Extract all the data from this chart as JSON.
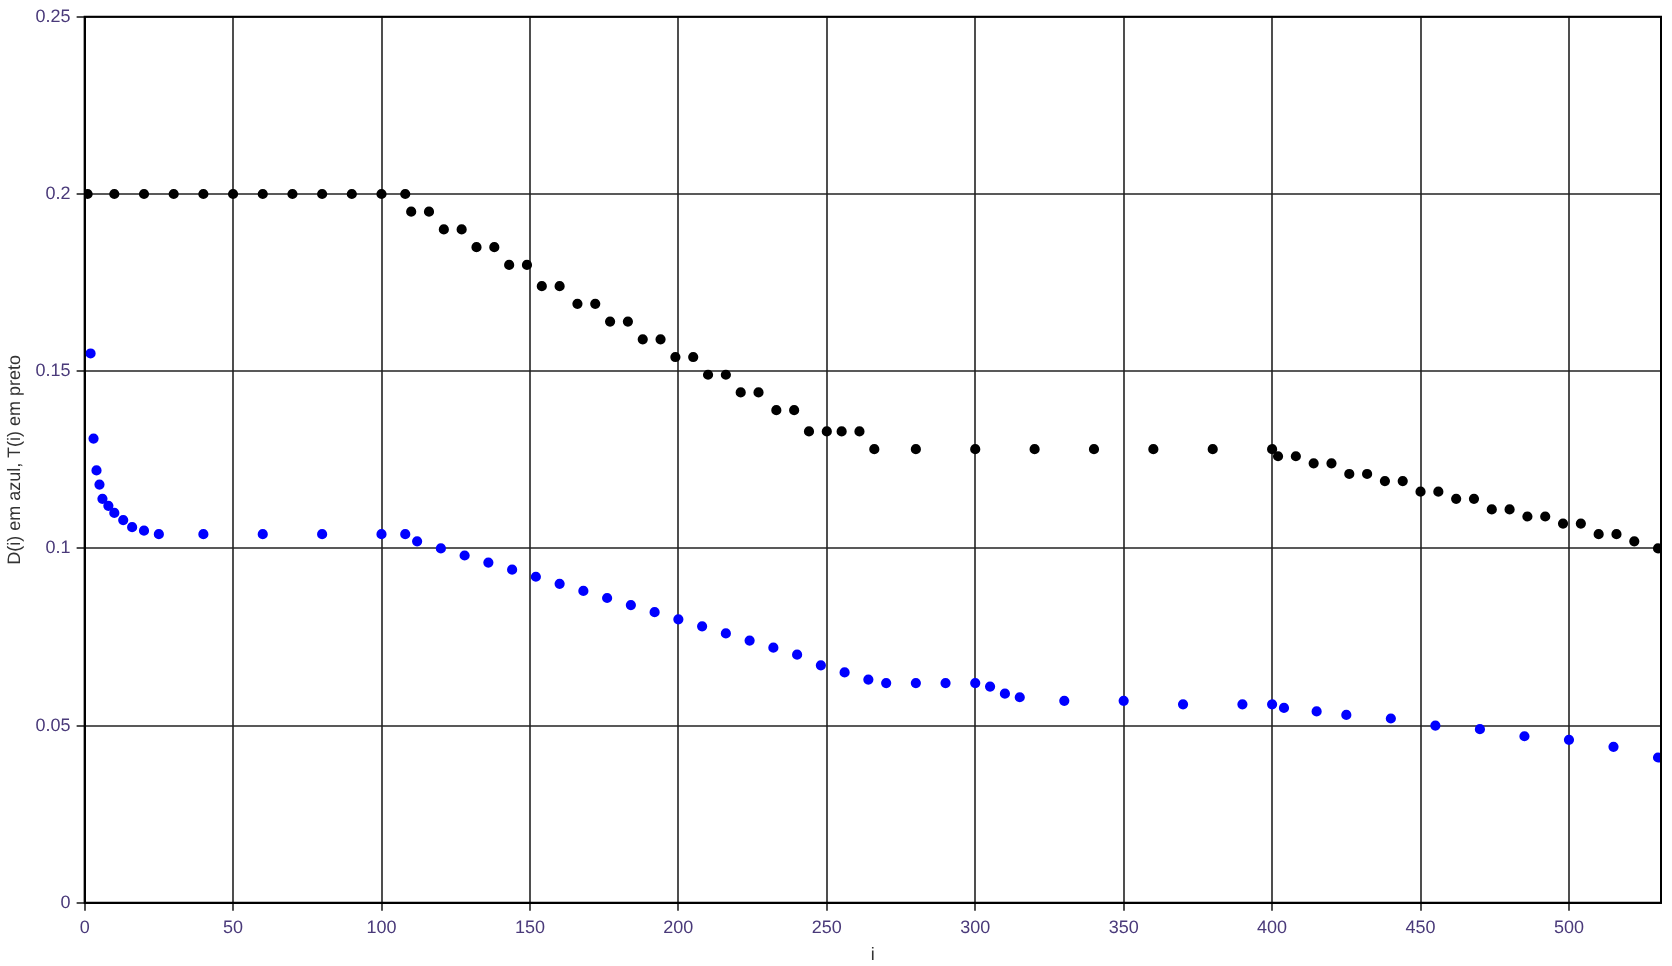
{
  "chart_data": {
    "type": "scatter",
    "xlabel": "i",
    "ylabel": "D(i) em azul, T(i) em preto",
    "xlim": [
      0,
      531
    ],
    "xticks": [
      0,
      50,
      100,
      150,
      200,
      250,
      300,
      350,
      400,
      450,
      500
    ],
    "ylim": [
      0,
      0.25
    ],
    "yticks": [
      0,
      0.05,
      0.1,
      0.15,
      0.2,
      0.25
    ],
    "grid": true,
    "legend": false,
    "marker": "circle",
    "series": [
      {
        "color": "#000000",
        "x": [
          1,
          10,
          20,
          30,
          40,
          50,
          60,
          70,
          80,
          90,
          100,
          108,
          110,
          116,
          121,
          127,
          132,
          138,
          143,
          149,
          154,
          160,
          166,
          172,
          177,
          183,
          188,
          194,
          199,
          205,
          210,
          216,
          221,
          227,
          233,
          239,
          244,
          250,
          255,
          261,
          266,
          280,
          300,
          320,
          340,
          360,
          380,
          400,
          402,
          408,
          414,
          420,
          426,
          432,
          438,
          444,
          450,
          456,
          462,
          468,
          474,
          480,
          486,
          492,
          498,
          504,
          510,
          516,
          522,
          530
        ],
        "values": [
          0.2,
          0.2,
          0.2,
          0.2,
          0.2,
          0.2,
          0.2,
          0.2,
          0.2,
          0.2,
          0.2,
          0.2,
          0.195,
          0.195,
          0.19,
          0.19,
          0.185,
          0.185,
          0.18,
          0.18,
          0.174,
          0.174,
          0.169,
          0.169,
          0.164,
          0.164,
          0.159,
          0.159,
          0.154,
          0.154,
          0.149,
          0.149,
          0.144,
          0.144,
          0.139,
          0.139,
          0.133,
          0.133,
          0.133,
          0.133,
          0.128,
          0.128,
          0.128,
          0.128,
          0.128,
          0.128,
          0.128,
          0.128,
          0.126,
          0.126,
          0.124,
          0.124,
          0.121,
          0.121,
          0.119,
          0.119,
          0.116,
          0.116,
          0.114,
          0.114,
          0.111,
          0.111,
          0.109,
          0.109,
          0.107,
          0.107,
          0.104,
          0.104,
          0.102,
          0.1
        ]
      },
      {
        "color": "#0000ff",
        "x": [
          2,
          3,
          4,
          5,
          6,
          8,
          10,
          13,
          16,
          20,
          25,
          40,
          60,
          80,
          100,
          108,
          112,
          120,
          128,
          136,
          144,
          152,
          160,
          168,
          176,
          184,
          192,
          200,
          208,
          216,
          224,
          232,
          240,
          248,
          256,
          264,
          270,
          280,
          290,
          300,
          305,
          310,
          315,
          330,
          350,
          370,
          390,
          400,
          404,
          415,
          425,
          440,
          455,
          470,
          485,
          500,
          515,
          530
        ],
        "values": [
          0.155,
          0.131,
          0.122,
          0.118,
          0.114,
          0.112,
          0.11,
          0.108,
          0.106,
          0.105,
          0.104,
          0.104,
          0.104,
          0.104,
          0.104,
          0.104,
          0.102,
          0.1,
          0.098,
          0.096,
          0.094,
          0.092,
          0.09,
          0.088,
          0.086,
          0.084,
          0.082,
          0.08,
          0.078,
          0.076,
          0.074,
          0.072,
          0.07,
          0.067,
          0.065,
          0.063,
          0.062,
          0.062,
          0.062,
          0.062,
          0.061,
          0.059,
          0.058,
          0.057,
          0.057,
          0.056,
          0.056,
          0.056,
          0.055,
          0.054,
          0.053,
          0.052,
          0.05,
          0.049,
          0.047,
          0.046,
          0.044,
          0.041
        ]
      }
    ]
  }
}
